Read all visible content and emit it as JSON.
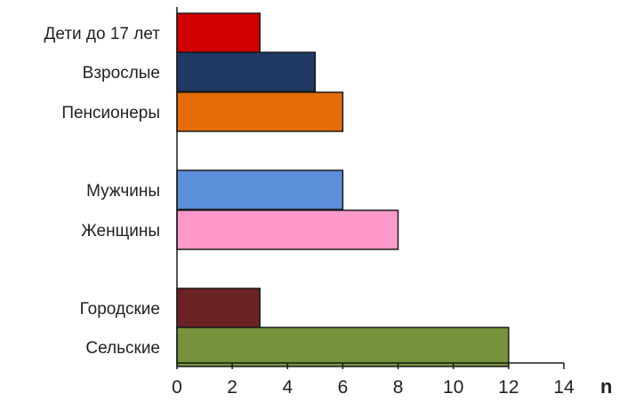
{
  "chart_data": {
    "type": "bar",
    "orientation": "horizontal",
    "title": "",
    "xlabel": "n",
    "ylabel": "",
    "xlim": [
      0,
      14
    ],
    "x_ticks": [
      "0",
      "2",
      "4",
      "6",
      "8",
      "10",
      "12",
      "14"
    ],
    "grid": false,
    "legend": "none",
    "categories": [
      "Дети до 17 лет",
      "Взрослые",
      "Пенсионеры",
      "Мужчины",
      "Женщины",
      "Городские",
      "Сельские"
    ],
    "groups": [
      [
        "Дети до 17 лет",
        "Взрослые",
        "Пенсионеры"
      ],
      [
        "Мужчины",
        "Женщины"
      ],
      [
        "Городские",
        "Сельские"
      ]
    ],
    "values": [
      3,
      5,
      6,
      6,
      8,
      3,
      12
    ],
    "colors": [
      "#d10000",
      "#1f3864",
      "#e36c09",
      "#5b8fd9",
      "#ff99cc",
      "#6b2224",
      "#76933c"
    ]
  }
}
